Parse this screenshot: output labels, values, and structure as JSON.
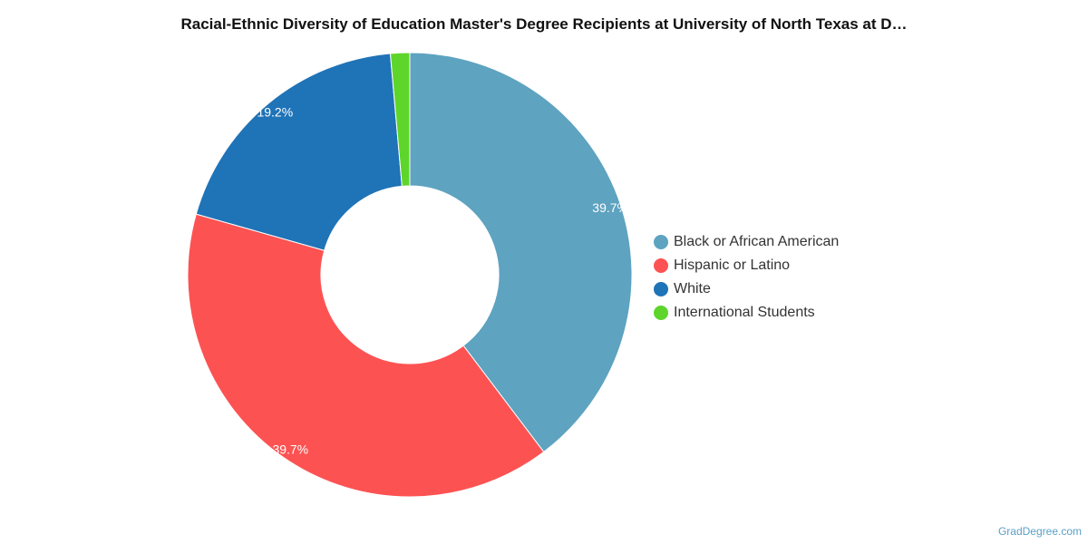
{
  "chart_data": {
    "type": "pie",
    "title": "Racial-Ethnic Diversity of Education Master's Degree Recipients at University of North Texas at D…",
    "categories": [
      "Black or African American",
      "Hispanic or Latino",
      "White",
      "International Students"
    ],
    "values": [
      39.7,
      39.7,
      19.2,
      1.4
    ],
    "labels": [
      "39.7%",
      "39.7%",
      "19.2%",
      ""
    ],
    "colors": [
      "#5ea3c0",
      "#fd5252",
      "#1f73b7",
      "#5ed52a"
    ],
    "hole": "donut",
    "legend_position": "right"
  },
  "credit": "GradDegree.com"
}
